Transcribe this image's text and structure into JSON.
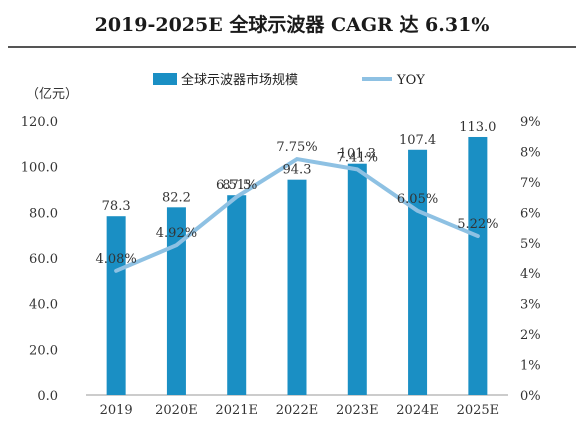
{
  "title": "2019-2025E 全球示波器 CAGR 达 6.31%",
  "colors": {
    "bar": "#1a8fc4",
    "line": "#8ec1e3"
  },
  "chart_data": {
    "type": "bar",
    "title": "2019-2025E 全球示波器 CAGR 达 6.31%",
    "unit_label": "（亿元）",
    "categories": [
      "2019",
      "2020E",
      "2021E",
      "2022E",
      "2023E",
      "2024E",
      "2025E"
    ],
    "series": [
      {
        "name": "全球示波器市场规模",
        "type": "bar",
        "axis": "left",
        "values": [
          78.3,
          82.2,
          87.5,
          94.3,
          101.3,
          107.4,
          113.0
        ],
        "labels": [
          "78.3",
          "82.2",
          "87.5",
          "94.3",
          "101.3",
          "107.4",
          "113.0"
        ]
      },
      {
        "name": "YOY",
        "type": "line",
        "axis": "right",
        "values": [
          4.08,
          4.92,
          6.51,
          7.75,
          7.41,
          6.05,
          5.22
        ],
        "labels": [
          "4.08%",
          "4.92%",
          "6.51%",
          "7.75%",
          "7.41%",
          "6.05%",
          "5.22%"
        ]
      }
    ],
    "y_left": {
      "min": 0,
      "max": 120,
      "ticks": [
        "0.0",
        "20.0",
        "40.0",
        "60.0",
        "80.0",
        "100.0",
        "120.0"
      ]
    },
    "y_right": {
      "min": 0,
      "max": 9,
      "ticks": [
        "0%",
        "1%",
        "2%",
        "3%",
        "4%",
        "5%",
        "6%",
        "7%",
        "8%",
        "9%"
      ]
    },
    "legend": "top",
    "grid": false
  }
}
